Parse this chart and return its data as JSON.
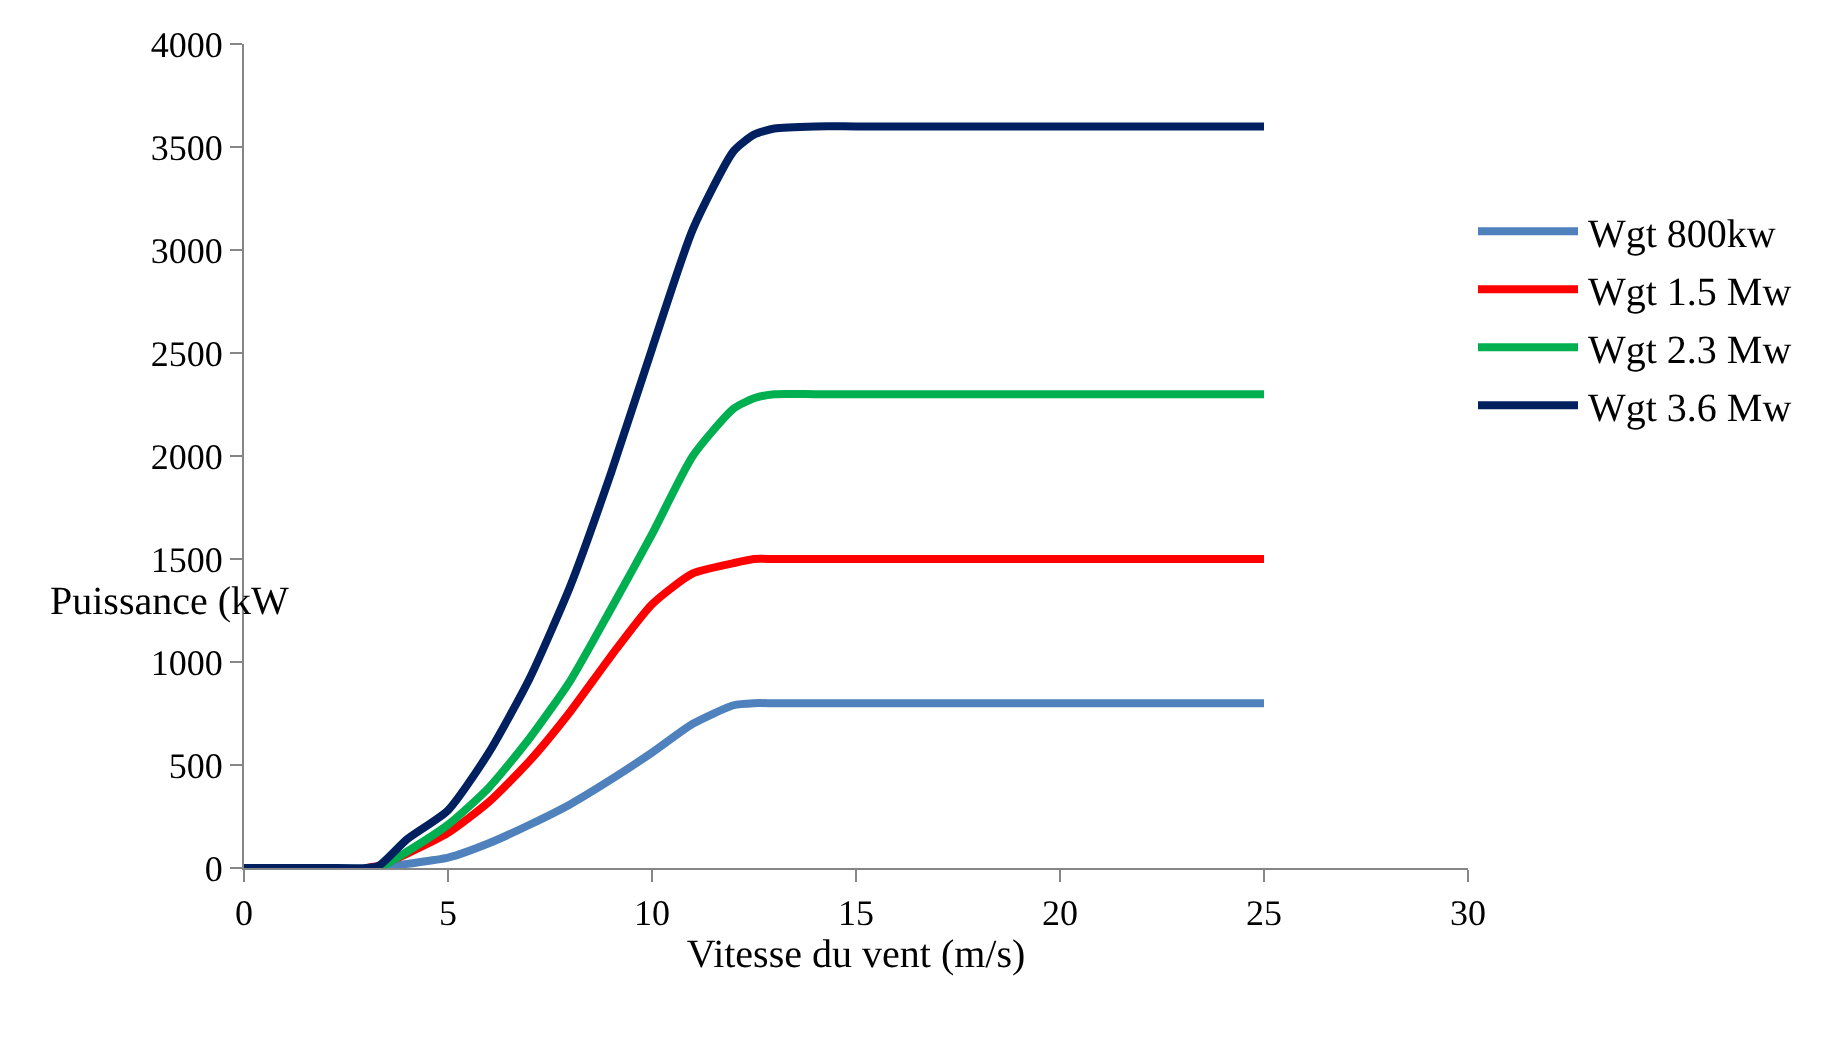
{
  "chart_data": {
    "type": "line",
    "xlabel": "Vitesse du vent (m/s)",
    "ylabel": "Puissance (kW",
    "x": [
      0,
      1,
      2,
      3,
      3.3,
      4,
      5,
      6,
      7,
      8,
      9,
      10,
      11,
      12,
      12.5,
      13,
      14,
      15,
      20,
      25
    ],
    "series": [
      {
        "name": "Wgt 800kw",
        "color": "#4f81bd",
        "values": [
          null,
          null,
          null,
          0,
          0,
          20,
          50,
          120,
          210,
          310,
          430,
          560,
          700,
          790,
          800,
          800,
          800,
          800,
          800,
          800
        ]
      },
      {
        "name": "Wgt 1.5 Mw",
        "color": "#ff0000",
        "values": [
          null,
          null,
          null,
          0,
          10,
          70,
          170,
          320,
          520,
          760,
          1030,
          1280,
          1430,
          1480,
          1500,
          1500,
          1500,
          1500,
          1500,
          1500
        ]
      },
      {
        "name": "Wgt 2.3 Mw",
        "color": "#00b050",
        "values": [
          null,
          null,
          null,
          0,
          0,
          80,
          210,
          390,
          630,
          910,
          1260,
          1620,
          2000,
          2230,
          2280,
          2300,
          2300,
          2300,
          2300,
          2300
        ]
      },
      {
        "name": "Wgt 3.6 Mw",
        "color": "#002060",
        "values": [
          0,
          0,
          0,
          0,
          10,
          140,
          280,
          560,
          920,
          1370,
          1920,
          2520,
          3100,
          3480,
          3560,
          3590,
          3600,
          3600,
          3600,
          3600
        ]
      }
    ],
    "xlim": [
      0,
      30
    ],
    "xticks": [
      0,
      5,
      10,
      15,
      20,
      25,
      30
    ],
    "ylim": [
      0,
      4000
    ],
    "yticks": [
      0,
      500,
      1000,
      1500,
      2000,
      2500,
      3000,
      3500,
      4000
    ],
    "grid": false,
    "legend": "right",
    "marker": "none",
    "line_style": "solid"
  }
}
